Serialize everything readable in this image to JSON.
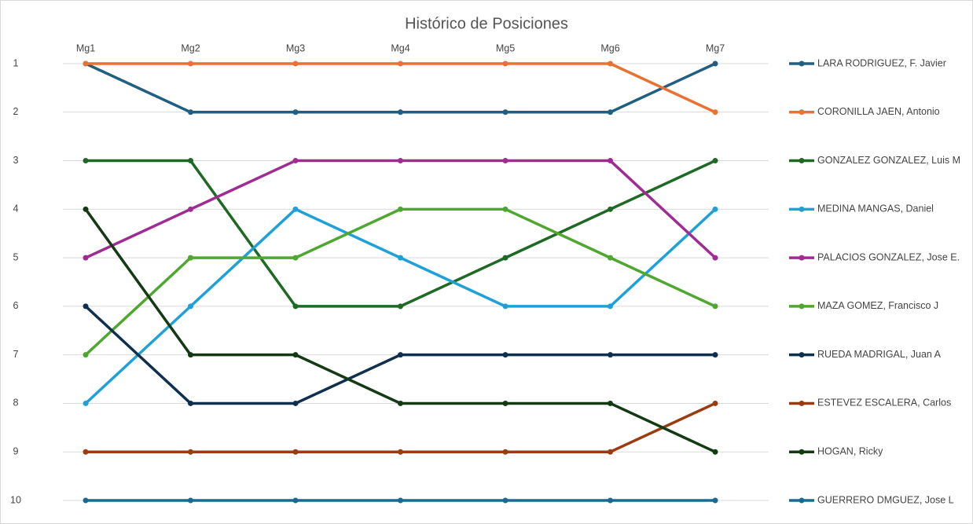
{
  "chart_data": {
    "type": "line",
    "title": "Histórico de Posiciones",
    "categories": [
      "Mg1",
      "Mg2",
      "Mg3",
      "Mg4",
      "Mg5",
      "Mg6",
      "Mg7"
    ],
    "ylim": [
      1,
      10
    ],
    "yticks": [
      1,
      2,
      3,
      4,
      5,
      6,
      7,
      8,
      9,
      10
    ],
    "y_reversed": true,
    "grid": true,
    "legend": "right",
    "series": [
      {
        "name": "LARA RODRIGUEZ, F. Javier",
        "color": "#1f5f82",
        "values": [
          1,
          2,
          2,
          2,
          2,
          2,
          1
        ]
      },
      {
        "name": "CORONILLA JAEN, Antonio",
        "color": "#e97132",
        "values": [
          1,
          1,
          1,
          1,
          1,
          1,
          2
        ]
      },
      {
        "name": "GONZALEZ GONZALEZ, Luis M",
        "color": "#1e6a24",
        "values": [
          3,
          3,
          6,
          6,
          5,
          4,
          3
        ]
      },
      {
        "name": "MEDINA MANGAS, Daniel",
        "color": "#1ea0d8",
        "values": [
          8,
          6,
          4,
          5,
          6,
          6,
          4
        ]
      },
      {
        "name": "PALACIOS GONZALEZ, Jose E.",
        "color": "#a02b93",
        "values": [
          5,
          4,
          3,
          3,
          3,
          3,
          5
        ]
      },
      {
        "name": "MAZA GOMEZ, Francisco J",
        "color": "#4ea72e",
        "values": [
          7,
          5,
          5,
          4,
          4,
          5,
          6
        ]
      },
      {
        "name": "RUEDA MADRIGAL, Juan A",
        "color": "#0e2f4e",
        "values": [
          6,
          8,
          8,
          7,
          7,
          7,
          7
        ]
      },
      {
        "name": "ESTEVEZ ESCALERA, Carlos",
        "color": "#9c3b0f",
        "values": [
          9,
          9,
          9,
          9,
          9,
          9,
          8
        ]
      },
      {
        "name": "HOGAN, Ricky",
        "color": "#143a14",
        "values": [
          4,
          7,
          7,
          8,
          8,
          8,
          9
        ]
      },
      {
        "name": "GUERRERO DMGUEZ, Jose L",
        "color": "#176b92",
        "values": [
          10,
          10,
          10,
          10,
          10,
          10,
          10
        ]
      }
    ]
  }
}
